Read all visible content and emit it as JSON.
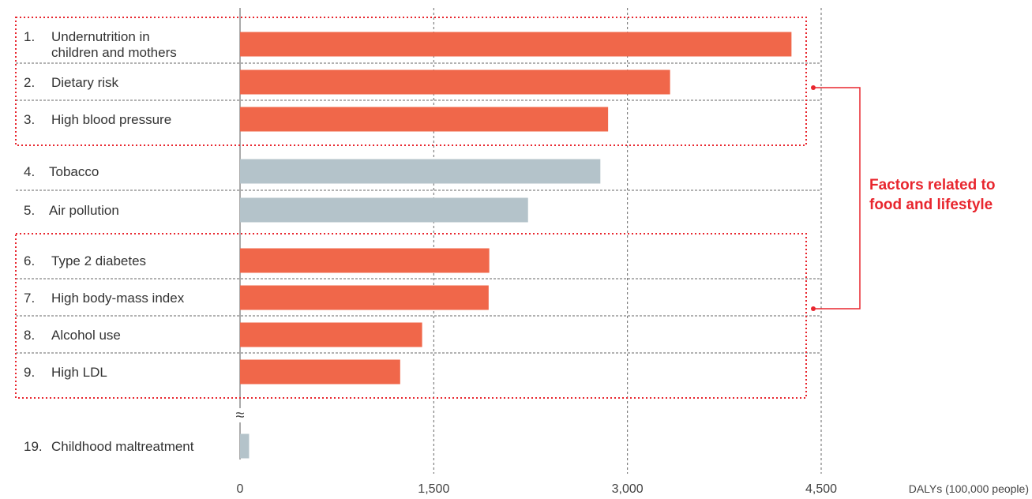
{
  "chart_data": {
    "type": "bar",
    "orientation": "horizontal",
    "xlabel": "DALYs (100,000 people)",
    "xlim": [
      0,
      4500
    ],
    "xticks": [
      0,
      1500,
      3000,
      4500
    ],
    "xtick_labels": [
      "0",
      "1,500",
      "3,000",
      "4,500"
    ],
    "grid": "vertical dashed",
    "categories": [
      {
        "num": "1.",
        "label": [
          "Undernutrition in",
          "children and mothers"
        ],
        "value": 4270,
        "food_related": true
      },
      {
        "num": "2.",
        "label": [
          "Dietary risk"
        ],
        "value": 3330,
        "food_related": true
      },
      {
        "num": "3.",
        "label": [
          "High blood pressure"
        ],
        "value": 2850,
        "food_related": true
      },
      {
        "num": "4.",
        "label": [
          "Tobacco"
        ],
        "value": 2790,
        "food_related": false
      },
      {
        "num": "5.",
        "label": [
          "Air pollution"
        ],
        "value": 2230,
        "food_related": false
      },
      {
        "num": "6.",
        "label": [
          "Type 2 diabetes"
        ],
        "value": 1930,
        "food_related": true
      },
      {
        "num": "7.",
        "label": [
          "High body-mass index"
        ],
        "value": 1925,
        "food_related": true
      },
      {
        "num": "8.",
        "label": [
          "Alcohol use"
        ],
        "value": 1410,
        "food_related": true
      },
      {
        "num": "9.",
        "label": [
          "High LDL"
        ],
        "value": 1240,
        "food_related": true
      },
      {
        "num": "19.",
        "label": [
          "Childhood maltreatment"
        ],
        "value": 70,
        "food_related": false
      }
    ],
    "annotation": [
      "Factors related to",
      "food and lifestyle"
    ],
    "axis_break_symbol": "≈",
    "colors": {
      "highlight": "#f0674a",
      "other": "#b4c3ca",
      "annotation": "#e8262e",
      "grid": "#666666"
    }
  }
}
